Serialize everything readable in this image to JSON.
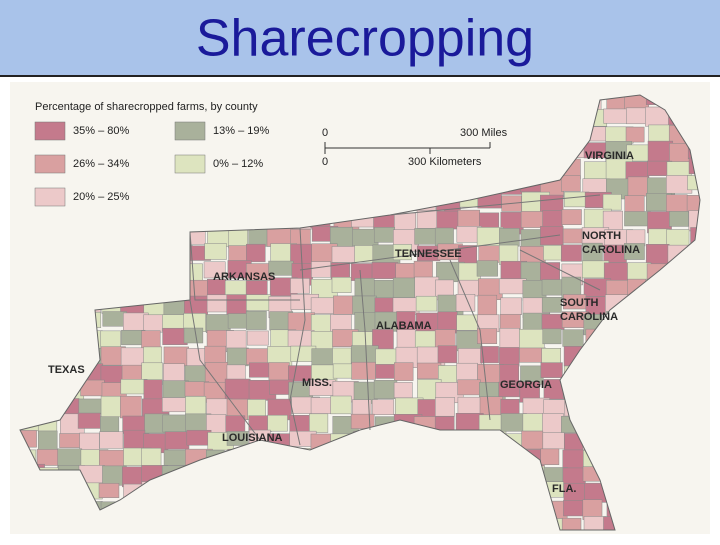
{
  "title": "Sharecropping",
  "map": {
    "legend": {
      "title": "Percentage of sharecropped farms, by county",
      "items": [
        {
          "label": "35% – 80%",
          "color": "#c47a8c"
        },
        {
          "label": "26% – 34%",
          "color": "#d9a0a0"
        },
        {
          "label": "20% – 25%",
          "color": "#ecc9c9"
        },
        {
          "label": "13% – 19%",
          "color": "#a9b19b"
        },
        {
          "label": "0% – 12%",
          "color": "#dde4bf"
        }
      ]
    },
    "scale": {
      "miles_zero": "0",
      "miles": "300 Miles",
      "km_zero": "0",
      "km": "300 Kilometers"
    },
    "states": [
      {
        "lines": [
          "VIRGINIA"
        ]
      },
      {
        "lines": [
          "NORTH",
          "CAROLINA"
        ]
      },
      {
        "lines": [
          "TENNESSEE"
        ]
      },
      {
        "lines": [
          "ARKANSAS"
        ]
      },
      {
        "lines": [
          "SOUTH",
          "CAROLINA"
        ]
      },
      {
        "lines": [
          "ALABAMA"
        ]
      },
      {
        "lines": [
          "TEXAS"
        ]
      },
      {
        "lines": [
          "MISS."
        ]
      },
      {
        "lines": [
          "GEORGIA"
        ]
      },
      {
        "lines": [
          "LOUISIANA"
        ]
      },
      {
        "lines": [
          "FLA."
        ]
      }
    ]
  }
}
